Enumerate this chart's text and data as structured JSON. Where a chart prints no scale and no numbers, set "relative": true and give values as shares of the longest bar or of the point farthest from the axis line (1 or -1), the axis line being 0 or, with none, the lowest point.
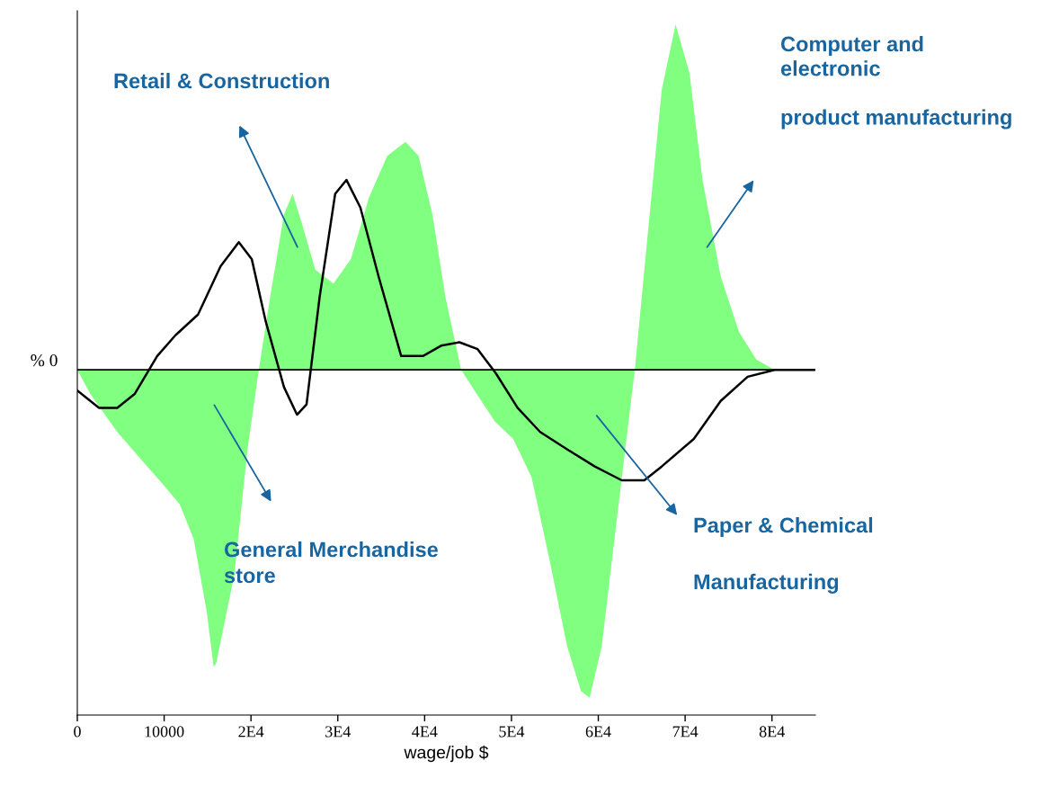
{
  "chart_data": {
    "type": "area",
    "relative": true,
    "xlabel": "wage/job $",
    "ylabel": "% 0",
    "xlim": [
      0,
      85000
    ],
    "xticks": [
      0,
      10000,
      {
        "value": 20000,
        "label": "2E4"
      },
      {
        "value": 30000,
        "label": "3E4"
      },
      {
        "value": 40000,
        "label": "4E4"
      },
      {
        "value": 50000,
        "label": "5E4"
      },
      {
        "value": 60000,
        "label": "6E4"
      },
      {
        "value": 70000,
        "label": "7E4"
      },
      {
        "value": 80000,
        "label": "8E4"
      }
    ],
    "grid": false,
    "ref_lines": [
      {
        "axis": "y",
        "value": 0,
        "color": "#000000"
      }
    ],
    "series": [
      {
        "type": "area",
        "color": "#80ff80",
        "x": [
          0,
          1500,
          4600,
          7700,
          9800,
          11800,
          13400,
          14900,
          15700,
          16000,
          18100,
          19600,
          20900,
          22200,
          23800,
          24800,
          25800,
          27400,
          29500,
          31500,
          33600,
          35700,
          37800,
          39300,
          40900,
          42400,
          44200,
          46000,
          48100,
          50200,
          52300,
          54300,
          56400,
          58000,
          59000,
          60400,
          62100,
          64200,
          65800,
          67300,
          68900,
          70500,
          72000,
          74100,
          76200,
          78200,
          80300
        ],
        "values": [
          0,
          -0.07,
          -0.18,
          -0.27,
          -0.33,
          -0.39,
          -0.49,
          -0.7,
          -0.86,
          -0.85,
          -0.59,
          -0.23,
          0,
          0.21,
          0.45,
          0.51,
          0.43,
          0.29,
          0.25,
          0.32,
          0.5,
          0.62,
          0.66,
          0.62,
          0.45,
          0.21,
          0,
          -0.07,
          -0.15,
          -0.2,
          -0.31,
          -0.54,
          -0.8,
          -0.93,
          -0.95,
          -0.8,
          -0.44,
          0,
          0.42,
          0.81,
          1,
          0.86,
          0.55,
          0.27,
          0.11,
          0.03,
          0
        ]
      },
      {
        "type": "line",
        "color": "#000000",
        "x": [
          0,
          2500,
          4600,
          6600,
          9200,
          11300,
          13900,
          16500,
          18600,
          20100,
          21700,
          23800,
          25300,
          26400,
          27900,
          29700,
          31000,
          32600,
          34700,
          37300,
          39800,
          41900,
          44000,
          46100,
          48200,
          50700,
          53300,
          56400,
          59600,
          62700,
          65300,
          67300,
          71000,
          74100,
          77200,
          80300,
          85000
        ],
        "values": [
          -0.06,
          -0.11,
          -0.11,
          -0.07,
          0.04,
          0.1,
          0.16,
          0.3,
          0.37,
          0.32,
          0.14,
          -0.05,
          -0.13,
          -0.1,
          0.21,
          0.51,
          0.55,
          0.47,
          0.27,
          0.04,
          0.04,
          0.07,
          0.08,
          0.06,
          -0.01,
          -0.11,
          -0.18,
          -0.23,
          -0.28,
          -0.32,
          -0.32,
          -0.28,
          -0.2,
          -0.09,
          -0.02,
          0,
          0
        ]
      }
    ],
    "annotations": [
      "Retail & Construction",
      "Computer and\nelectronic\n\nproduct manufacturing",
      "General Merchandise\nstore",
      "Paper & Chemical\n\nManufacturing"
    ]
  }
}
